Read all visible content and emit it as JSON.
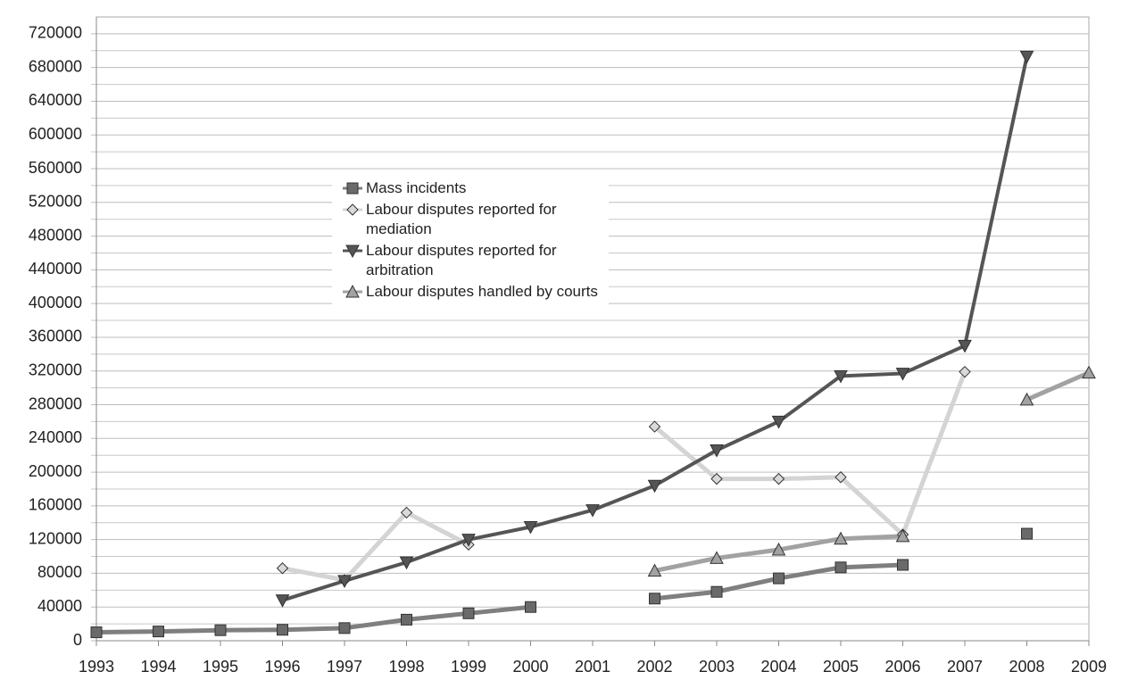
{
  "chart_data": {
    "type": "line",
    "categories": [
      "1993",
      "1994",
      "1995",
      "1996",
      "1997",
      "1998",
      "1999",
      "2000",
      "2001",
      "2002",
      "2003",
      "2004",
      "2005",
      "2006",
      "2007",
      "2008",
      "2009"
    ],
    "series": [
      {
        "name": "Mass incidents",
        "color": "#7f7f7f",
        "marker": "square",
        "marker_color": "#6a6a6a",
        "values": [
          10000,
          11000,
          12500,
          13000,
          15000,
          25000,
          32500,
          40000,
          null,
          50000,
          58000,
          74000,
          87000,
          90000,
          null,
          127000,
          null
        ]
      },
      {
        "name": "Labour disputes reported for mediation",
        "color": "#d4d4d4",
        "marker": "diamond",
        "marker_color": "#d9d9d9",
        "values": [
          null,
          null,
          null,
          86000,
          72000,
          152000,
          114000,
          null,
          null,
          254000,
          192000,
          192000,
          194000,
          126000,
          319000,
          null,
          null
        ]
      },
      {
        "name": "Labour disputes reported for arbitration",
        "color": "#555555",
        "marker": "triangle-down",
        "marker_color": "#555555",
        "values": [
          null,
          null,
          null,
          48000,
          71000,
          93000,
          120000,
          135000,
          155000,
          184000,
          226000,
          260000,
          314000,
          317000,
          350000,
          693000,
          null
        ]
      },
      {
        "name": "Labour disputes handled by courts",
        "color": "#a2a2a2",
        "marker": "triangle-up",
        "marker_color": "#a2a2a2",
        "values": [
          null,
          null,
          null,
          null,
          null,
          null,
          null,
          null,
          null,
          83000,
          98000,
          108000,
          121000,
          124000,
          null,
          286000,
          318000
        ]
      }
    ],
    "ylim": [
      0,
      740000
    ],
    "yticks": [
      0,
      40000,
      80000,
      120000,
      160000,
      200000,
      240000,
      280000,
      320000,
      360000,
      400000,
      440000,
      480000,
      520000,
      560000,
      600000,
      640000,
      680000,
      720000
    ],
    "minor_yticks": [
      20000,
      60000,
      100000,
      140000,
      180000,
      220000,
      260000,
      300000,
      340000,
      380000,
      420000,
      460000,
      500000,
      540000,
      580000,
      620000,
      660000,
      700000
    ],
    "grid": true
  }
}
